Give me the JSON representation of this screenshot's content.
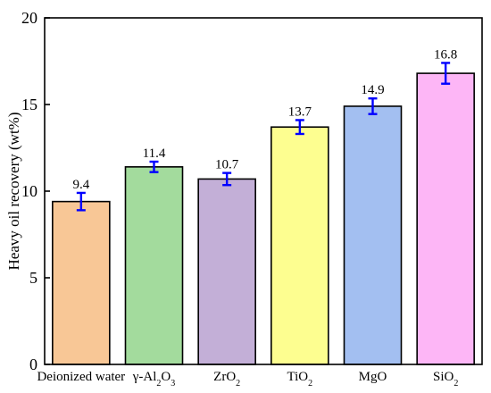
{
  "chart_data": {
    "type": "bar",
    "title": "",
    "xlabel": "",
    "ylabel": "Heavy oil recovery (wt%)",
    "ylim": [
      0,
      20
    ],
    "yticks": [
      0,
      5,
      10,
      15,
      20
    ],
    "grid": false,
    "legend": "none",
    "categories": [
      {
        "parts": [
          {
            "t": "Deionized water"
          }
        ]
      },
      {
        "parts": [
          {
            "t": "γ-Al"
          },
          {
            "t": "2",
            "sub": true
          },
          {
            "t": "O"
          },
          {
            "t": "3",
            "sub": true
          }
        ]
      },
      {
        "parts": [
          {
            "t": "ZrO"
          },
          {
            "t": "2",
            "sub": true
          }
        ]
      },
      {
        "parts": [
          {
            "t": "TiO"
          },
          {
            "t": "2",
            "sub": true
          }
        ]
      },
      {
        "parts": [
          {
            "t": "MgO"
          }
        ]
      },
      {
        "parts": [
          {
            "t": "SiO"
          },
          {
            "t": "2",
            "sub": true
          }
        ]
      }
    ],
    "values": [
      9.4,
      11.4,
      10.7,
      13.7,
      14.9,
      16.8
    ],
    "value_labels": [
      "9.4",
      "11.4",
      "10.7",
      "13.7",
      "14.9",
      "16.8"
    ],
    "errors": [
      0.5,
      0.3,
      0.35,
      0.4,
      0.45,
      0.6
    ],
    "colors": [
      "#F8C796",
      "#A3DB9D",
      "#C3AFD7",
      "#FDFE90",
      "#A3BFF1",
      "#FDB6F6"
    ],
    "error_color": "#0000FF"
  }
}
